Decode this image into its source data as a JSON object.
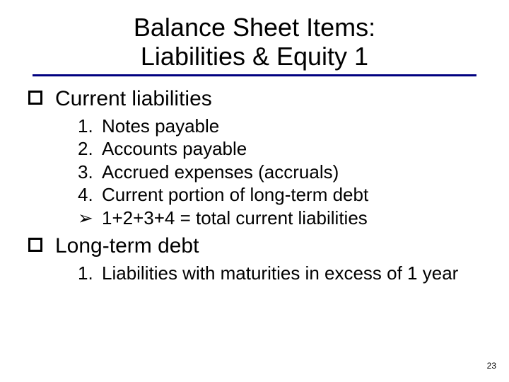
{
  "title_line1": "Balance Sheet Items:",
  "title_line2": "Liabilities & Equity 1",
  "colors": {
    "underline": "#000080",
    "text": "#000000",
    "background": "#ffffff"
  },
  "fonts": {
    "title_size_pt": 36,
    "lvl1_size_pt": 30,
    "lvl2_size_pt": 26
  },
  "sections": [
    {
      "label": "Current liabilities",
      "items": [
        {
          "marker": "1.",
          "text": "Notes payable"
        },
        {
          "marker": "2.",
          "text": "Accounts payable"
        },
        {
          "marker": "3.",
          "text": "Accrued expenses (accruals)"
        },
        {
          "marker": "4.",
          "text": "Current portion of long-term debt"
        },
        {
          "marker": "➢",
          "text": "1+2+3+4 = total current liabilities"
        }
      ]
    },
    {
      "label": "Long-term debt",
      "items": [
        {
          "marker": "1.",
          "text": "Liabilities with maturities in excess of 1 year"
        }
      ]
    }
  ],
  "page_number": "23"
}
